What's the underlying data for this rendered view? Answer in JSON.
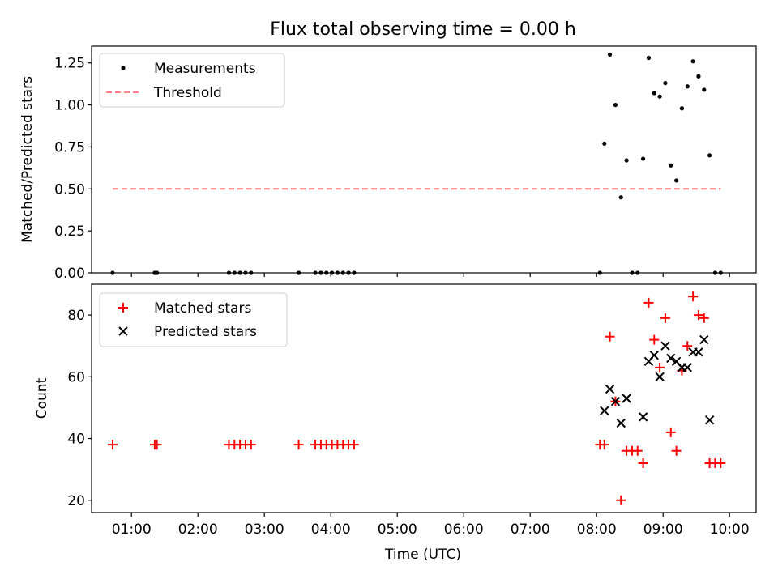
{
  "chart_data": [
    {
      "type": "scatter",
      "title": "Flux total observing time = 0.00 h",
      "xlabel": "",
      "ylabel": "Matched/Predicted stars",
      "xlim": [
        "00:24",
        "10:24"
      ],
      "ylim": [
        0,
        1.35
      ],
      "yticks": [
        "0.00",
        "0.25",
        "0.50",
        "0.75",
        "1.00",
        "1.25"
      ],
      "grid": false,
      "legend_position": "upper-left",
      "series": [
        {
          "name": "Measurements",
          "kind": "scatter",
          "color": "#000000",
          "points": [
            [
              "00:43",
              0.0
            ],
            [
              "01:21",
              0.0
            ],
            [
              "01:23",
              0.0
            ],
            [
              "02:28",
              0.0
            ],
            [
              "02:33",
              0.0
            ],
            [
              "02:38",
              0.0
            ],
            [
              "02:43",
              0.0
            ],
            [
              "02:48",
              0.0
            ],
            [
              "03:31",
              0.0
            ],
            [
              "03:46",
              0.0
            ],
            [
              "03:51",
              0.0
            ],
            [
              "03:56",
              0.0
            ],
            [
              "04:01",
              0.0
            ],
            [
              "04:06",
              0.0
            ],
            [
              "04:11",
              0.0
            ],
            [
              "04:16",
              0.0
            ],
            [
              "04:21",
              0.0
            ],
            [
              "08:03",
              0.0
            ],
            [
              "08:07",
              0.77
            ],
            [
              "08:12",
              1.3
            ],
            [
              "08:17",
              1.0
            ],
            [
              "08:22",
              0.45
            ],
            [
              "08:27",
              0.67
            ],
            [
              "08:32",
              0.0
            ],
            [
              "08:37",
              0.0
            ],
            [
              "08:42",
              0.68
            ],
            [
              "08:47",
              1.28
            ],
            [
              "08:52",
              1.07
            ],
            [
              "08:57",
              1.05
            ],
            [
              "09:02",
              1.13
            ],
            [
              "09:07",
              0.64
            ],
            [
              "09:12",
              0.55
            ],
            [
              "09:17",
              0.98
            ],
            [
              "09:22",
              1.11
            ],
            [
              "09:27",
              1.26
            ],
            [
              "09:32",
              1.17
            ],
            [
              "09:37",
              1.09
            ],
            [
              "09:42",
              0.7
            ],
            [
              "09:47",
              0.0
            ],
            [
              "09:52",
              0.0
            ]
          ]
        },
        {
          "name": "Threshold",
          "kind": "line",
          "style": "dashed",
          "color": "#ff8080",
          "points": [
            [
              "00:43",
              0.5
            ],
            [
              "09:52",
              0.5
            ]
          ]
        }
      ]
    },
    {
      "type": "scatter",
      "title": "",
      "xlabel": "Time (UTC)",
      "ylabel": "Count",
      "xlim": [
        "00:24",
        "10:24"
      ],
      "ylim": [
        16,
        90
      ],
      "yticks": [
        "20",
        "40",
        "60",
        "80"
      ],
      "xticks": [
        "01:00",
        "02:00",
        "03:00",
        "04:00",
        "05:00",
        "06:00",
        "07:00",
        "08:00",
        "09:00",
        "10:00"
      ],
      "grid": false,
      "legend_position": "upper-left",
      "series": [
        {
          "name": "Matched stars",
          "marker": "plus",
          "color": "#ff0000",
          "points": [
            [
              "00:43",
              38
            ],
            [
              "01:21",
              38
            ],
            [
              "01:23",
              38
            ],
            [
              "02:28",
              38
            ],
            [
              "02:33",
              38
            ],
            [
              "02:38",
              38
            ],
            [
              "02:43",
              38
            ],
            [
              "02:48",
              38
            ],
            [
              "03:31",
              38
            ],
            [
              "03:46",
              38
            ],
            [
              "03:51",
              38
            ],
            [
              "03:56",
              38
            ],
            [
              "04:01",
              38
            ],
            [
              "04:06",
              38
            ],
            [
              "04:11",
              38
            ],
            [
              "04:16",
              38
            ],
            [
              "04:21",
              38
            ],
            [
              "08:03",
              38
            ],
            [
              "08:07",
              38
            ],
            [
              "08:12",
              73
            ],
            [
              "08:17",
              52
            ],
            [
              "08:22",
              20
            ],
            [
              "08:27",
              36
            ],
            [
              "08:32",
              36
            ],
            [
              "08:37",
              36
            ],
            [
              "08:42",
              32
            ],
            [
              "08:47",
              84
            ],
            [
              "08:52",
              72
            ],
            [
              "08:57",
              63
            ],
            [
              "09:02",
              79
            ],
            [
              "09:07",
              42
            ],
            [
              "09:12",
              36
            ],
            [
              "09:17",
              62
            ],
            [
              "09:22",
              70
            ],
            [
              "09:27",
              86
            ],
            [
              "09:32",
              80
            ],
            [
              "09:37",
              79
            ],
            [
              "09:42",
              32
            ],
            [
              "09:47",
              32
            ],
            [
              "09:52",
              32
            ]
          ]
        },
        {
          "name": "Predicted stars",
          "marker": "x",
          "color": "#000000",
          "points": [
            [
              "08:07",
              49
            ],
            [
              "08:12",
              56
            ],
            [
              "08:17",
              52
            ],
            [
              "08:22",
              45
            ],
            [
              "08:27",
              53
            ],
            [
              "08:42",
              47
            ],
            [
              "08:47",
              65
            ],
            [
              "08:52",
              67
            ],
            [
              "08:57",
              60
            ],
            [
              "09:02",
              70
            ],
            [
              "09:07",
              66
            ],
            [
              "09:12",
              65
            ],
            [
              "09:17",
              63
            ],
            [
              "09:22",
              63
            ],
            [
              "09:27",
              68
            ],
            [
              "09:32",
              68
            ],
            [
              "09:37",
              72
            ],
            [
              "09:42",
              46
            ]
          ]
        }
      ]
    }
  ]
}
